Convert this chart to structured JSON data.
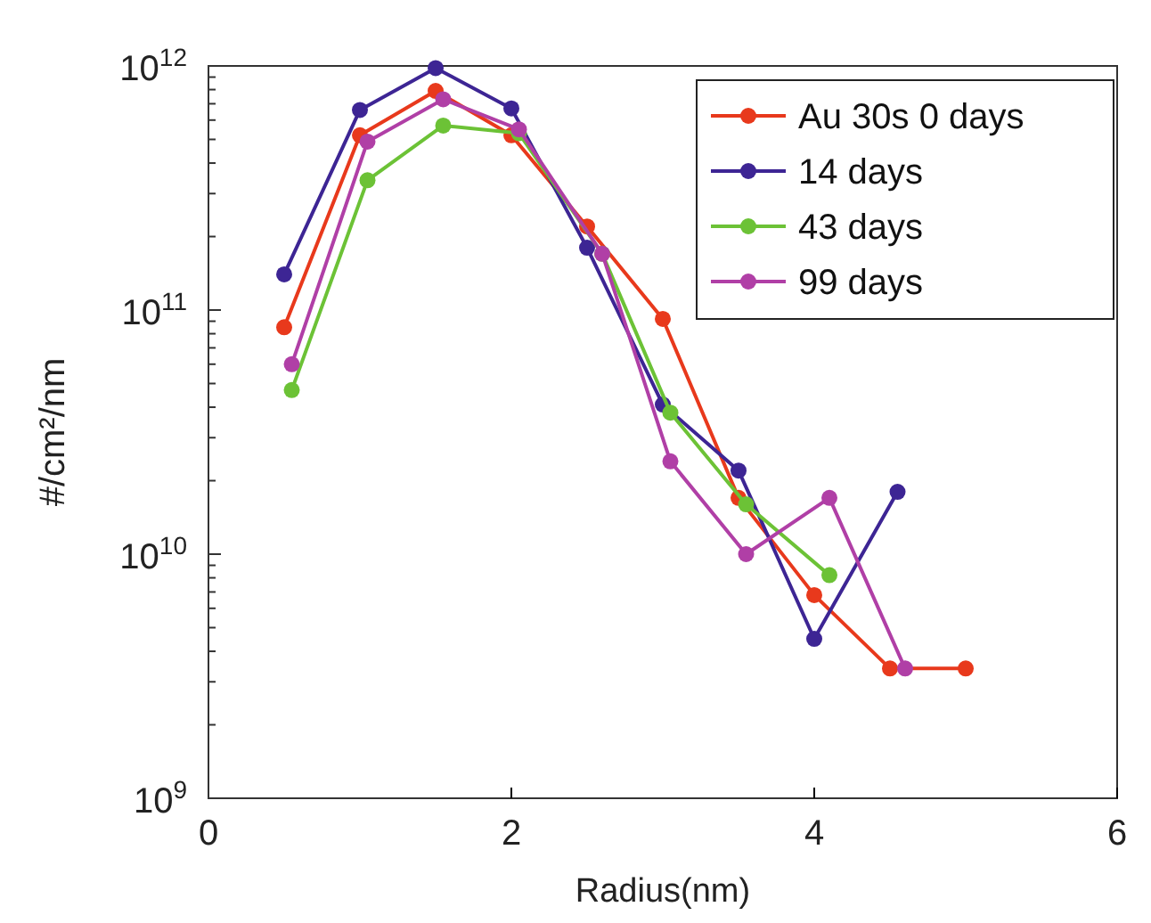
{
  "chart_data": {
    "type": "line",
    "xlabel": "Radius(nm)",
    "ylabel": "#/cm²/nm",
    "log": "y",
    "xlim": [
      0,
      6
    ],
    "xticks": [
      0,
      2,
      4,
      6
    ],
    "ylim": [
      1000000000.0,
      1000000000000.0
    ],
    "yticks": [
      {
        "value": 1000000000.0,
        "label": "10$^{9}$"
      },
      {
        "value": 2000000000.0,
        "label": null
      },
      {
        "value": 3000000000.0,
        "label": null
      },
      {
        "value": 4000000000.0,
        "label": null
      },
      {
        "value": 5000000000.0,
        "label": null
      },
      {
        "value": 6000000000.0,
        "label": null
      },
      {
        "value": 7000000000.0,
        "label": null
      },
      {
        "value": 8000000000.0,
        "label": null
      },
      {
        "value": 9000000000.0,
        "label": null
      },
      {
        "value": 10000000000.0,
        "label": "10$^{10}$"
      },
      {
        "value": 20000000000.0,
        "label": null
      },
      {
        "value": 30000000000.0,
        "label": null
      },
      {
        "value": 40000000000.0,
        "label": null
      },
      {
        "value": 50000000000.0,
        "label": null
      },
      {
        "value": 60000000000.0,
        "label": null
      },
      {
        "value": 70000000000.0,
        "label": null
      },
      {
        "value": 80000000000.0,
        "label": null
      },
      {
        "value": 90000000000.0,
        "label": null
      },
      {
        "value": 100000000000.0,
        "label": "10$^{11}$"
      },
      {
        "value": 200000000000.0,
        "label": null
      },
      {
        "value": 300000000000.0,
        "label": null
      },
      {
        "value": 400000000000.0,
        "label": null
      },
      {
        "value": 500000000000.0,
        "label": null
      },
      {
        "value": 600000000000.0,
        "label": null
      },
      {
        "value": 700000000000.0,
        "label": null
      },
      {
        "value": 800000000000.0,
        "label": null
      },
      {
        "value": 900000000000.0,
        "label": null
      },
      {
        "value": 1000000000000.0,
        "label": "10$^{12}$"
      }
    ],
    "grid": false,
    "legend": "top right",
    "marker": "circle",
    "line_style": "solid",
    "series": [
      {
        "name": "Au 30s 0 days",
        "color": "#e8391c",
        "x": [
          0.5,
          1,
          1.5,
          2,
          2.5,
          3,
          3.5,
          4,
          4.5,
          5
        ],
        "values": [
          85000000000.0,
          520000000000.0,
          790000000000.0,
          520000000000.0,
          220000000000.0,
          92000000000.0,
          17000000000.0,
          6800000000.0,
          3400000000.0,
          3400000000.0
        ]
      },
      {
        "name": "14 days",
        "color": "#3d2594",
        "x": [
          0.5,
          1,
          1.5,
          2,
          2.5,
          3,
          3.5,
          4,
          4.55
        ],
        "values": [
          140000000000.0,
          660000000000.0,
          980000000000.0,
          670000000000.0,
          180000000000.0,
          41000000000.0,
          22000000000.0,
          4500000000.0,
          18000000000.0
        ]
      },
      {
        "name": "43 days",
        "color": "#6cc236",
        "x": [
          0.55,
          1.05,
          1.55,
          2.05,
          2.6,
          3.05,
          3.55,
          4.1
        ],
        "values": [
          47000000000.0,
          340000000000.0,
          570000000000.0,
          530000000000.0,
          170000000000.0,
          38000000000.0,
          16000000000.0,
          8200000000.0
        ]
      },
      {
        "name": "99 days",
        "color": "#b03fa6",
        "x": [
          0.55,
          1.05,
          1.55,
          2.05,
          2.6,
          3.05,
          3.55,
          4.1,
          4.6
        ],
        "values": [
          60000000000.0,
          490000000000.0,
          730000000000.0,
          550000000000.0,
          170000000000.0,
          24000000000.0,
          10000000000.0,
          17000000000.0,
          3400000000.0
        ]
      }
    ]
  }
}
